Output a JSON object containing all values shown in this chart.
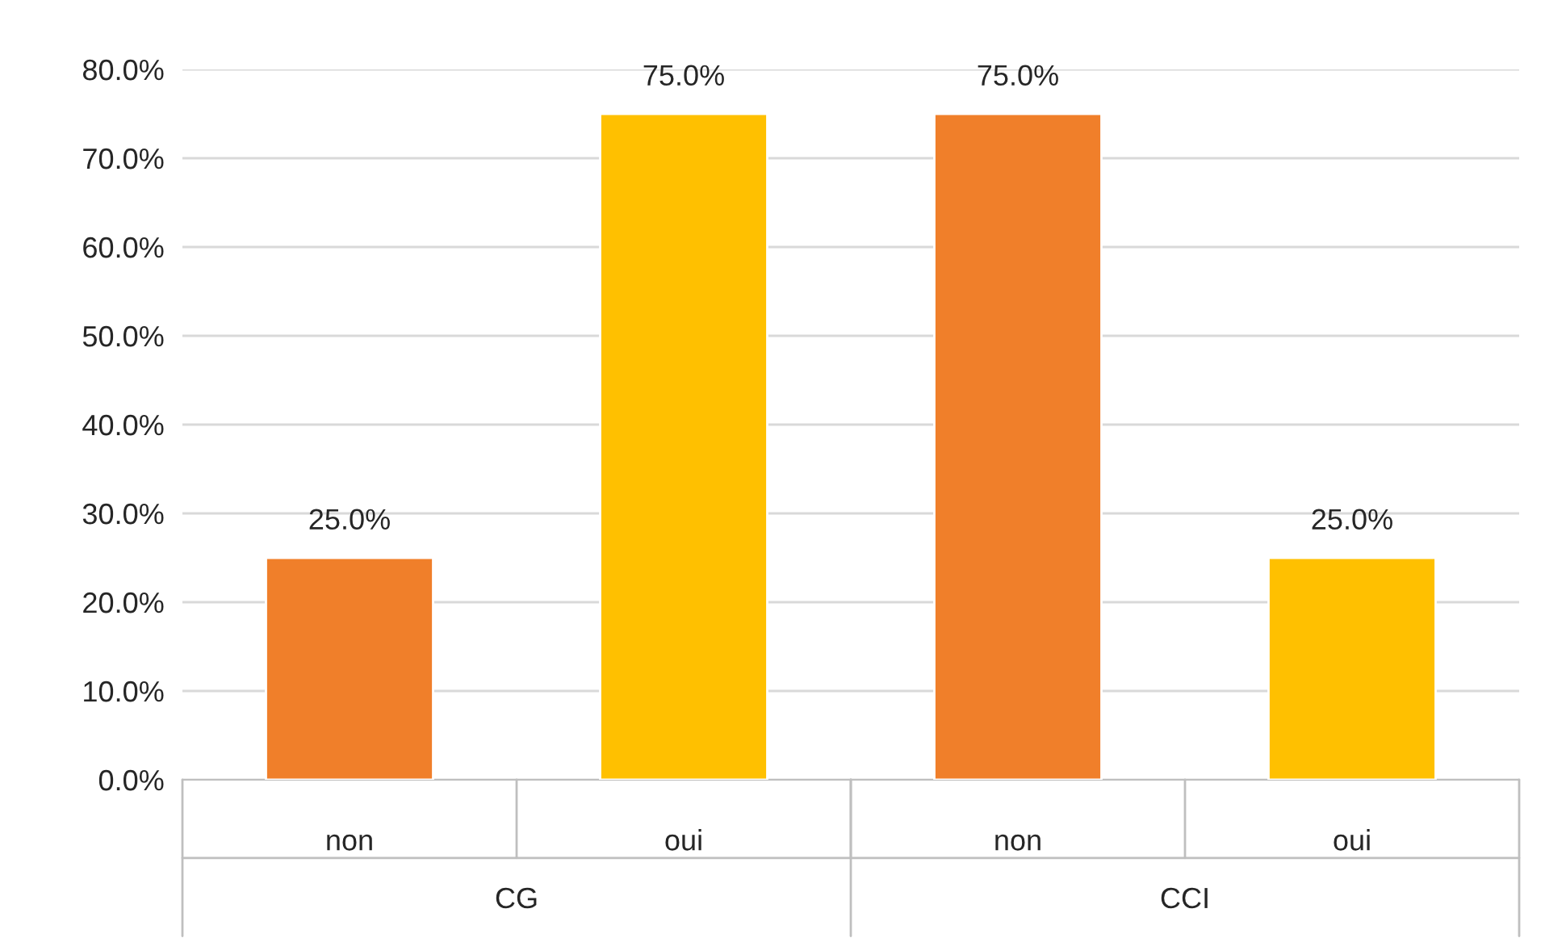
{
  "chart_data": {
    "type": "bar",
    "categories": [
      "non",
      "oui",
      "non",
      "oui"
    ],
    "values": [
      25,
      75,
      75,
      25
    ],
    "colors": [
      "#f07f2a",
      "#ffc000",
      "#f07f2a",
      "#ffc000"
    ],
    "value_labels": [
      "25.0%",
      "75.0%",
      "75.0%",
      "25.0%"
    ],
    "annotations": [
      "CG",
      "CCI"
    ],
    "ylim": [
      0,
      80
    ],
    "yticks": [
      {
        "value": 0,
        "label": "0.0%"
      },
      {
        "value": 10,
        "label": "10.0%"
      },
      {
        "value": 20,
        "label": "20.0%"
      },
      {
        "value": 30,
        "label": "30.0%"
      },
      {
        "value": 40,
        "label": "40.0%"
      },
      {
        "value": 50,
        "label": "50.0%"
      },
      {
        "value": 60,
        "label": "60.0%"
      },
      {
        "value": 70,
        "label": "70.0%"
      },
      {
        "value": 80,
        "label": "80.0%"
      }
    ],
    "grid": "y",
    "legend": false
  }
}
